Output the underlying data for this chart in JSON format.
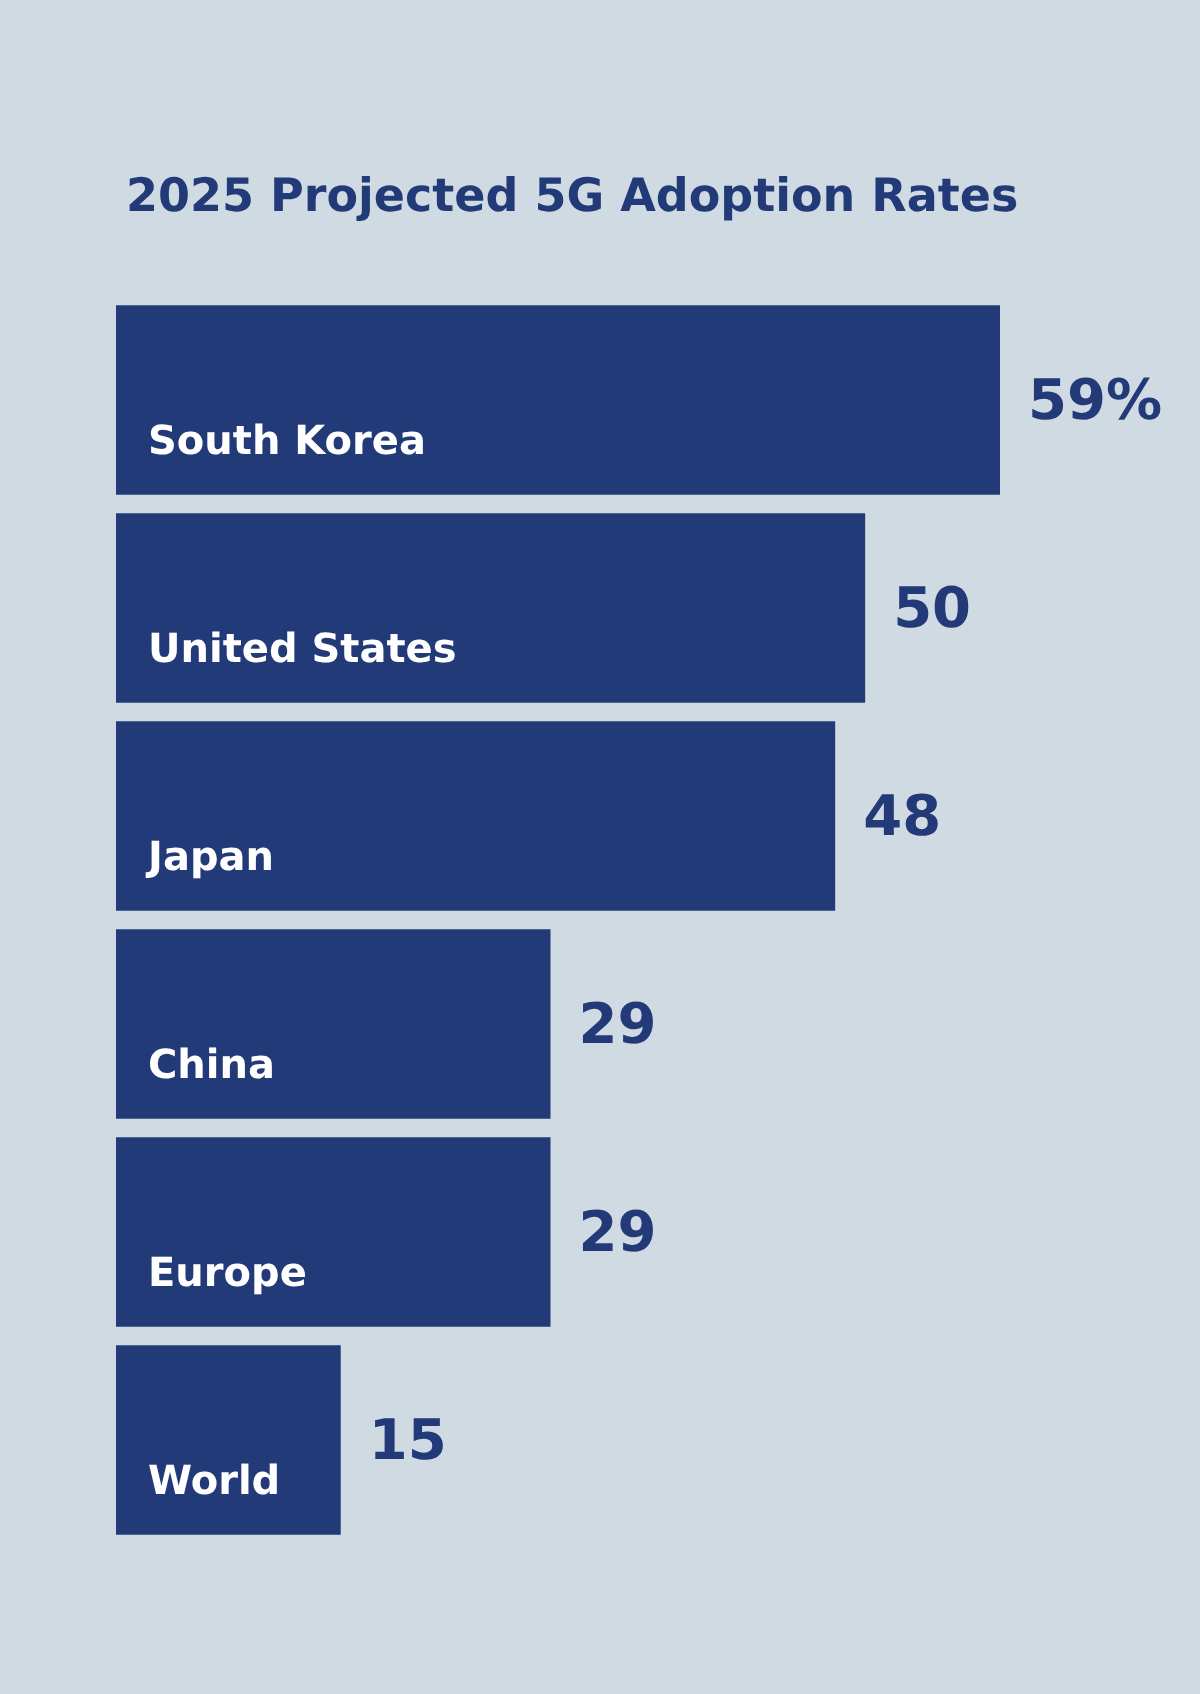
{
  "chart_data": {
    "type": "bar",
    "orientation": "horizontal",
    "title": "2025 Projected 5G Adoption Rates",
    "categories": [
      "South Korea",
      "United States",
      "Japan",
      "China",
      "Europe",
      "World"
    ],
    "values": [
      59,
      50,
      48,
      29,
      29,
      15
    ],
    "value_labels": [
      "59%",
      "50",
      "48",
      "29",
      "29",
      "15"
    ],
    "color": "#233a78"
  }
}
